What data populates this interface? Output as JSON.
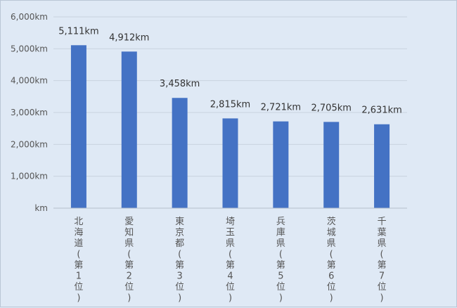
{
  "chart_data": {
    "type": "bar",
    "title": "",
    "xlabel": "",
    "ylabel": "",
    "unit": "km",
    "categories": [
      "北海道(第1位)",
      "愛知県(第2位)",
      "東京都(第3位)",
      "埼玉県(第4位)",
      "兵庫県(第5位)",
      "茨城県(第6位)",
      "千葉県(第7位)"
    ],
    "values": [
      5111,
      4912,
      3458,
      2815,
      2721,
      2705,
      2631
    ],
    "data_labels": [
      "5,111km",
      "4,912km",
      "3,458km",
      "2,815km",
      "2,721km",
      "2,705km",
      "2,631km"
    ],
    "y_ticks": [
      0,
      1000,
      2000,
      3000,
      4000,
      5000,
      6000
    ],
    "y_tick_labels": [
      "km",
      "1,000km",
      "2,000km",
      "3,000km",
      "4,000km",
      "5,000km",
      "6,000km"
    ],
    "ylim": [
      0,
      6000
    ],
    "grid": true,
    "legend": "none",
    "bar_color": "#4472c4"
  }
}
